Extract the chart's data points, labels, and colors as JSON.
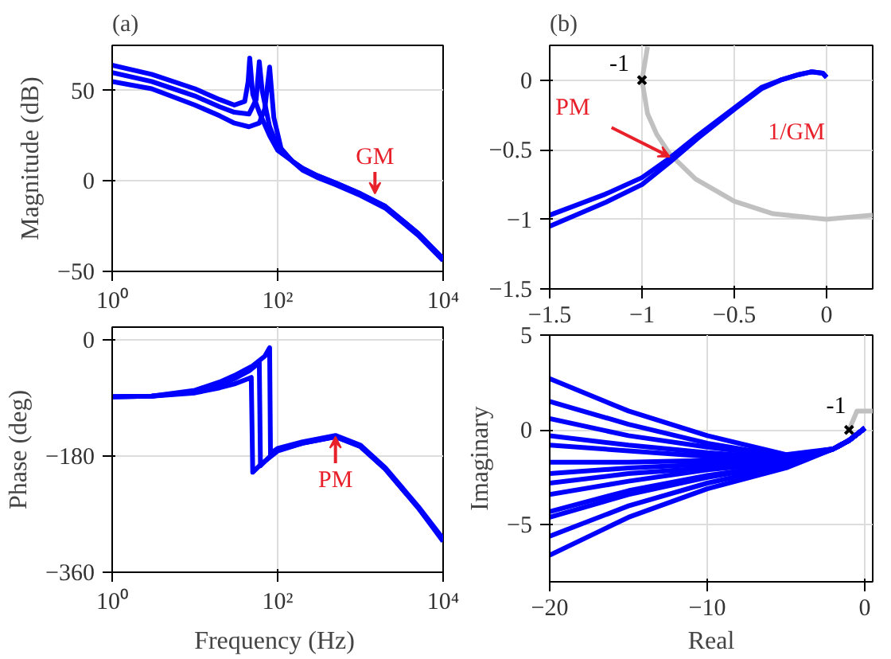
{
  "chart_data": [
    {
      "type": "line",
      "title": "(a)",
      "ylabel": "Magnitude (dB)",
      "log": "x",
      "xlim": [
        1,
        10000
      ],
      "ylim": [
        -50,
        75
      ],
      "xticks": [
        {
          "value": 1,
          "label": "10⁰"
        },
        {
          "value": 100,
          "label": "10²"
        },
        {
          "value": 10000,
          "label": "10⁴"
        }
      ],
      "yticks": [
        -50,
        0,
        50
      ],
      "grid": true,
      "series": [
        {
          "color": "#0000ff",
          "x": [
            1,
            3,
            10,
            20,
            30,
            40,
            44,
            46,
            50,
            60,
            80,
            100,
            150,
            200,
            300,
            500,
            1000,
            2000,
            5000,
            10000
          ],
          "values": [
            64,
            59,
            51,
            45,
            42,
            44,
            55,
            68,
            48,
            38,
            25,
            17,
            11,
            7,
            3,
            -1,
            -7,
            -14,
            -29,
            -43
          ]
        },
        {
          "color": "#0000ff",
          "x": [
            1,
            3,
            10,
            20,
            30,
            45,
            55,
            60,
            65,
            80,
            100,
            150,
            200,
            300,
            500,
            1000,
            2000,
            5000,
            10000
          ],
          "values": [
            60,
            55,
            47,
            41,
            38,
            37,
            45,
            66,
            50,
            30,
            19,
            11,
            7,
            3,
            -1,
            -7,
            -14,
            -29,
            -43
          ]
        },
        {
          "color": "#0000ff",
          "x": [
            1,
            3,
            10,
            20,
            30,
            45,
            60,
            70,
            80,
            90,
            110,
            150,
            200,
            300,
            500,
            1000,
            2000,
            5000,
            10000
          ],
          "values": [
            55,
            51,
            42,
            36,
            32,
            30,
            32,
            40,
            63,
            35,
            18,
            11,
            6,
            2,
            -2,
            -8,
            -15,
            -30,
            -44
          ]
        }
      ],
      "annotations": [
        {
          "text": "GM",
          "x": 1500,
          "y": -7
        }
      ]
    },
    {
      "type": "line",
      "xlabel": "Frequency  (Hz)",
      "ylabel": "Phase (deg)",
      "log": "x",
      "xlim": [
        1,
        10000
      ],
      "ylim": [
        -360,
        20
      ],
      "xticks": [
        {
          "value": 1,
          "label": "10⁰"
        },
        {
          "value": 100,
          "label": "10²"
        },
        {
          "value": 10000,
          "label": "10⁴"
        }
      ],
      "yticks": [
        -360,
        -180,
        0
      ],
      "grid": true,
      "series": [
        {
          "color": "#0000ff",
          "x": [
            1,
            3,
            10,
            20,
            30,
            40,
            48,
            50,
            60,
            80,
            100,
            200,
            500,
            1000,
            2000,
            5000,
            10000
          ],
          "values": [
            -88,
            -87,
            -82,
            -74,
            -68,
            -62,
            -58,
            -205,
            -195,
            -182,
            -172,
            -160,
            -150,
            -165,
            -200,
            -260,
            -312
          ]
        },
        {
          "color": "#0000ff",
          "x": [
            1,
            3,
            10,
            20,
            30,
            45,
            60,
            62,
            70,
            90,
            100,
            200,
            500,
            1000,
            2000,
            5000,
            10000
          ],
          "values": [
            -88,
            -87,
            -80,
            -70,
            -60,
            -48,
            -35,
            -195,
            -188,
            -175,
            -170,
            -160,
            -150,
            -165,
            -200,
            -260,
            -310
          ]
        },
        {
          "color": "#0000ff",
          "x": [
            1,
            3,
            10,
            20,
            30,
            50,
            70,
            80,
            82,
            90,
            100,
            200,
            500,
            1000,
            2000,
            5000,
            10000
          ],
          "values": [
            -88,
            -87,
            -78,
            -65,
            -55,
            -40,
            -25,
            -12,
            -180,
            -172,
            -168,
            -158,
            -148,
            -163,
            -198,
            -258,
            -308
          ]
        }
      ],
      "annotations": [
        {
          "text": "PM",
          "x": 500,
          "y": -150
        }
      ]
    },
    {
      "type": "line",
      "title": "(b)",
      "xlim": [
        -1.5,
        0.25
      ],
      "ylim": [
        -1.5,
        0.25
      ],
      "xticks": [
        -1.5,
        -1,
        -0.5,
        0
      ],
      "yticks": [
        -1.5,
        -1,
        -0.5,
        0
      ],
      "grid": true,
      "series": [
        {
          "color": "#c0c0c0",
          "x": [
            -0.97,
            -1,
            -0.97,
            -0.92,
            -0.85,
            -0.71,
            -0.5,
            -0.29,
            0,
            0.25
          ],
          "values": [
            0.24,
            0,
            -0.24,
            -0.39,
            -0.53,
            -0.71,
            -0.87,
            -0.96,
            -1,
            -0.97
          ]
        },
        {
          "color": "#0000ff",
          "x": [
            -1.5,
            -1.2,
            -1,
            -0.85,
            -0.7,
            -0.5,
            -0.35,
            -0.25,
            -0.15,
            -0.08,
            -0.02,
            0
          ],
          "values": [
            -0.97,
            -0.82,
            -0.7,
            -0.56,
            -0.4,
            -0.2,
            -0.05,
            0.0,
            0.04,
            0.06,
            0.05,
            0.02
          ]
        },
        {
          "color": "#0000ff",
          "x": [
            -1.5,
            -1.2,
            -1,
            -0.85,
            -0.7,
            -0.5,
            -0.35,
            -0.25,
            -0.15,
            -0.08,
            -0.02,
            0
          ],
          "values": [
            -1.05,
            -0.88,
            -0.75,
            -0.59,
            -0.42,
            -0.21,
            -0.06,
            0.0,
            0.04,
            0.06,
            0.05,
            0.02
          ]
        },
        {
          "type": "scatter",
          "marker": "cross",
          "color": "#000000",
          "x": [
            -1
          ],
          "values": [
            0
          ]
        }
      ],
      "annotations": [
        {
          "text": "-1",
          "x": -1,
          "y": 0
        },
        {
          "text": "PM",
          "x": -0.85,
          "y": -0.55
        },
        "1/GM"
      ]
    },
    {
      "type": "line",
      "xlabel": "Real",
      "ylabel": "Imaginary",
      "xlim": [
        -20,
        0.5
      ],
      "ylim": [
        -8,
        5
      ],
      "xticks": [
        -20,
        -10,
        0
      ],
      "yticks": [
        -5,
        0,
        5
      ],
      "grid": true,
      "series": [
        {
          "color": "#c0c0c0",
          "x": [
            -1,
            -0.5,
            0,
            0.5
          ],
          "values": [
            0,
            1,
            1,
            1
          ]
        },
        {
          "color": "#0000ff",
          "x": [
            -20,
            -15,
            -10,
            -5,
            -2,
            -1,
            -0.3,
            0
          ],
          "values": [
            2.7,
            1.0,
            -0.3,
            -1.3,
            -1.0,
            -0.55,
            -0.1,
            0.1
          ]
        },
        {
          "color": "#0000ff",
          "x": [
            -20,
            -15,
            -10,
            -5,
            -2,
            -1,
            -0.3,
            0
          ],
          "values": [
            1.5,
            0.3,
            -0.7,
            -1.4,
            -1.0,
            -0.55,
            -0.1,
            0.1
          ]
        },
        {
          "color": "#0000ff",
          "x": [
            -20,
            -15,
            -10,
            -5,
            -2,
            -1,
            -0.3,
            0
          ],
          "values": [
            0.6,
            -0.3,
            -0.9,
            -1.4,
            -1.0,
            -0.55,
            -0.1,
            0.1
          ]
        },
        {
          "color": "#0000ff",
          "x": [
            -20,
            -15,
            -10,
            -5,
            -2,
            -1,
            -0.3,
            0
          ],
          "values": [
            -0.3,
            -0.8,
            -1.2,
            -1.5,
            -1.0,
            -0.55,
            -0.1,
            0.1
          ]
        },
        {
          "color": "#0000ff",
          "x": [
            -20,
            -15,
            -10,
            -5,
            -2,
            -1,
            -0.3,
            0
          ],
          "values": [
            -0.8,
            -1.1,
            -1.4,
            -1.5,
            -1.0,
            -0.55,
            -0.1,
            0.1
          ]
        },
        {
          "color": "#0000ff",
          "x": [
            -20,
            -15,
            -10,
            -5,
            -2,
            -1,
            -0.3,
            0
          ],
          "values": [
            -1.7,
            -1.7,
            -1.6,
            -1.6,
            -1.0,
            -0.55,
            -0.1,
            0.1
          ]
        },
        {
          "color": "#0000ff",
          "x": [
            -20,
            -15,
            -10,
            -5,
            -2,
            -1,
            -0.3,
            0
          ],
          "values": [
            -2.3,
            -2.0,
            -1.8,
            -1.7,
            -1.0,
            -0.55,
            -0.1,
            0.1
          ]
        },
        {
          "color": "#0000ff",
          "x": [
            -20,
            -15,
            -10,
            -5,
            -2,
            -1,
            -0.3,
            0
          ],
          "values": [
            -2.8,
            -2.3,
            -2.0,
            -1.7,
            -1.0,
            -0.55,
            -0.1,
            0.1
          ]
        },
        {
          "color": "#0000ff",
          "x": [
            -20,
            -15,
            -10,
            -5,
            -2,
            -1,
            -0.3,
            0
          ],
          "values": [
            -3.4,
            -2.7,
            -2.1,
            -1.7,
            -1.0,
            -0.55,
            -0.1,
            0.1
          ]
        },
        {
          "color": "#0000ff",
          "x": [
            -20,
            -15,
            -10,
            -5,
            -2,
            -1,
            -0.3,
            0
          ],
          "values": [
            -4.3,
            -3.2,
            -2.4,
            -1.8,
            -1.0,
            -0.55,
            -0.1,
            0.1
          ]
        },
        {
          "color": "#0000ff",
          "x": [
            -20,
            -15,
            -10,
            -5,
            -2,
            -1,
            -0.3,
            0
          ],
          "values": [
            -4.6,
            -3.4,
            -2.5,
            -1.8,
            -1.0,
            -0.55,
            -0.1,
            0.1
          ]
        },
        {
          "color": "#0000ff",
          "x": [
            -20,
            -15,
            -10,
            -5,
            -2,
            -1,
            -0.3,
            0
          ],
          "values": [
            -5.6,
            -4.0,
            -2.8,
            -1.9,
            -1.0,
            -0.55,
            -0.1,
            0.1
          ]
        },
        {
          "color": "#0000ff",
          "x": [
            -20,
            -15,
            -10,
            -5,
            -2,
            -1,
            -0.3,
            0
          ],
          "values": [
            -6.6,
            -4.6,
            -3.1,
            -2.0,
            -1.0,
            -0.55,
            -0.1,
            0.1
          ]
        },
        {
          "type": "scatter",
          "marker": "cross",
          "color": "#000000",
          "x": [
            -1
          ],
          "values": [
            0
          ]
        }
      ],
      "annotations": [
        {
          "text": "-1",
          "x": -1,
          "y": 0
        }
      ]
    }
  ]
}
